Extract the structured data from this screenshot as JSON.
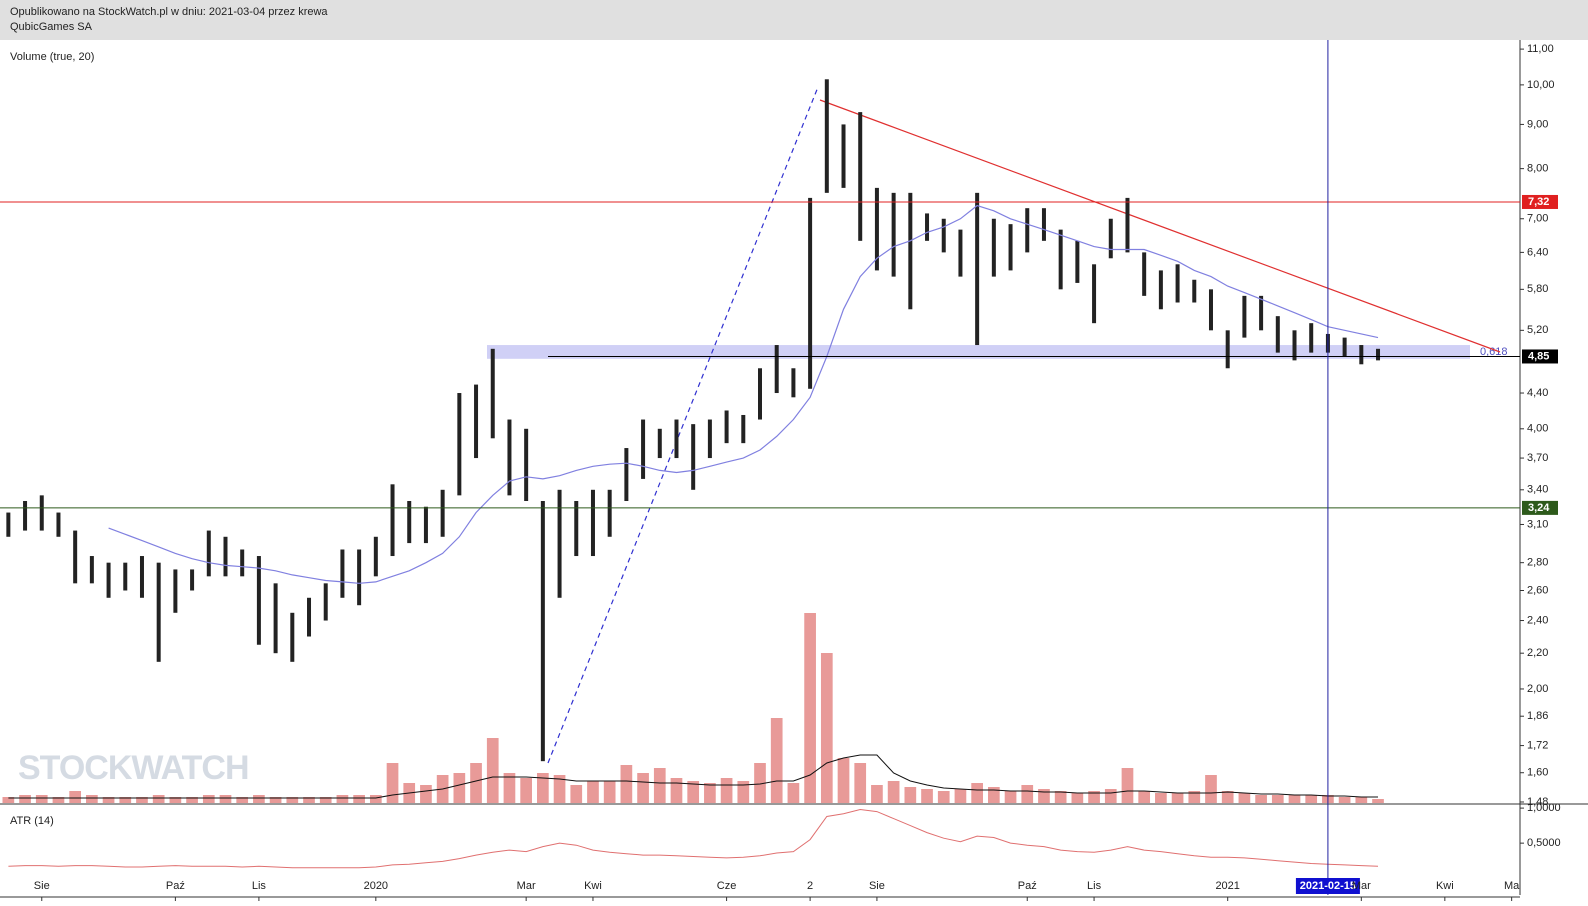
{
  "chart_data": {
    "type": "stock",
    "header": "Opublikowano na StockWatch.pl w dniu: 2021-03-04 przez krewa",
    "title": "QubicGames SA",
    "volume_label": "Volume (true, 20)",
    "atr_label": "ATR (14)",
    "watermark": "STOCKWATCH",
    "log_scale": true,
    "ylim": [
      1.476,
      11.27
    ],
    "yticks": [
      {
        "value": 11,
        "label": "11,00"
      },
      {
        "value": 10,
        "label": "10,00"
      },
      {
        "value": 9,
        "label": "9,00"
      },
      {
        "value": 8,
        "label": "8,00"
      },
      {
        "value": 7,
        "label": "7,00"
      },
      {
        "value": 6.4,
        "label": "6,40"
      },
      {
        "value": 5.8,
        "label": "5,80"
      },
      {
        "value": 5.2,
        "label": "5,20"
      },
      {
        "value": 4.4,
        "label": "4,40"
      },
      {
        "value": 4,
        "label": "4,00"
      },
      {
        "value": 3.7,
        "label": "3,70"
      },
      {
        "value": 3.4,
        "label": "3,40"
      },
      {
        "value": 3.1,
        "label": "3,10"
      },
      {
        "value": 2.8,
        "label": "2,80"
      },
      {
        "value": 2.6,
        "label": "2,60"
      },
      {
        "value": 2.4,
        "label": "2,40"
      },
      {
        "value": 2.2,
        "label": "2,20"
      },
      {
        "value": 2,
        "label": "2,00"
      },
      {
        "value": 1.86,
        "label": "1,86"
      },
      {
        "value": 1.72,
        "label": "1,72"
      },
      {
        "value": 1.6,
        "label": "1,60"
      },
      {
        "value": 1.48,
        "label": "1,48"
      }
    ],
    "categories": [
      null,
      null,
      "Sie",
      null,
      null,
      null,
      null,
      null,
      null,
      null,
      "Paź",
      null,
      null,
      null,
      null,
      "Lis",
      null,
      null,
      null,
      null,
      null,
      null,
      "2020",
      null,
      null,
      null,
      null,
      null,
      null,
      null,
      null,
      "Mar",
      null,
      null,
      null,
      "Kwi",
      null,
      null,
      null,
      null,
      null,
      null,
      null,
      "Cze",
      null,
      null,
      null,
      null,
      "2",
      null,
      null,
      null,
      "Sie",
      null,
      null,
      null,
      null,
      null,
      null,
      null,
      null,
      "Paź",
      null,
      null,
      null,
      "Lis",
      null,
      null,
      null,
      null,
      null,
      null,
      null,
      "2021",
      null,
      null,
      null,
      null,
      null,
      "2021-02-15",
      null,
      "Mar",
      null,
      null,
      null,
      null,
      "Kwi",
      null,
      null,
      null,
      "Ma"
    ],
    "low": [
      3.0,
      3.05,
      3.05,
      3.0,
      2.65,
      2.65,
      2.55,
      2.6,
      2.55,
      2.15,
      2.45,
      2.6,
      2.7,
      2.7,
      2.7,
      2.25,
      2.2,
      2.15,
      2.3,
      2.4,
      2.55,
      2.5,
      2.7,
      2.85,
      2.95,
      2.95,
      3.0,
      3.35,
      3.7,
      3.9,
      3.35,
      3.3,
      1.65,
      2.55,
      2.85,
      2.85,
      3.0,
      3.3,
      3.5,
      3.7,
      3.7,
      3.4,
      3.7,
      3.85,
      3.85,
      4.1,
      4.4,
      4.35,
      4.45,
      7.5,
      7.6,
      6.6,
      6.1,
      6.0,
      5.5,
      6.6,
      6.4,
      6.0,
      5.0,
      6.0,
      6.1,
      6.4,
      6.6,
      5.8,
      5.9,
      5.3,
      6.3,
      6.4,
      5.7,
      5.5,
      5.6,
      5.6,
      5.2,
      4.7,
      5.1,
      5.2,
      4.9,
      4.8,
      4.9,
      4.9,
      4.85,
      4.75,
      4.8,
      null,
      null,
      null,
      null,
      null,
      null,
      null,
      null
    ],
    "high": [
      3.2,
      3.3,
      3.35,
      3.2,
      3.05,
      2.85,
      2.8,
      2.8,
      2.85,
      2.8,
      2.75,
      2.75,
      3.05,
      3.0,
      2.9,
      2.85,
      2.65,
      2.45,
      2.55,
      2.65,
      2.9,
      2.9,
      3.0,
      3.45,
      3.3,
      3.25,
      3.4,
      4.4,
      4.5,
      4.95,
      4.1,
      4.0,
      3.3,
      3.4,
      3.3,
      3.4,
      3.4,
      3.8,
      4.1,
      4.0,
      4.1,
      4.05,
      4.1,
      4.2,
      4.15,
      4.7,
      5.0,
      4.7,
      7.4,
      10.15,
      9.0,
      9.3,
      7.6,
      7.5,
      7.5,
      7.1,
      7.0,
      6.8,
      7.5,
      7.0,
      6.9,
      7.2,
      7.2,
      6.8,
      6.6,
      6.2,
      7.0,
      7.4,
      6.4,
      6.1,
      6.2,
      5.95,
      5.8,
      5.2,
      5.7,
      5.7,
      5.4,
      5.2,
      5.3,
      5.15,
      5.1,
      5.0,
      4.95,
      null,
      null,
      null,
      null,
      null,
      null,
      null,
      null
    ],
    "ma": {
      "color": "#8080e0",
      "values": [
        null,
        null,
        null,
        null,
        null,
        null,
        3.07,
        3.02,
        2.97,
        2.92,
        2.87,
        2.83,
        2.8,
        2.78,
        2.77,
        2.76,
        2.74,
        2.71,
        2.69,
        2.67,
        2.66,
        2.65,
        2.66,
        2.7,
        2.74,
        2.8,
        2.87,
        3.0,
        3.2,
        3.35,
        3.48,
        3.52,
        3.5,
        3.53,
        3.58,
        3.62,
        3.64,
        3.65,
        3.62,
        3.58,
        3.56,
        3.58,
        3.62,
        3.66,
        3.7,
        3.78,
        3.92,
        4.1,
        4.35,
        4.85,
        5.5,
        6.0,
        6.3,
        6.5,
        6.6,
        6.75,
        6.85,
        7.0,
        7.25,
        7.15,
        7.0,
        6.9,
        6.8,
        6.7,
        6.6,
        6.5,
        6.45,
        6.45,
        6.45,
        6.35,
        6.25,
        6.1,
        6.0,
        5.85,
        5.75,
        5.65,
        5.55,
        5.45,
        5.35,
        5.25,
        5.2,
        5.15,
        5.1,
        null,
        null,
        null,
        null,
        null,
        null,
        null,
        null
      ]
    },
    "volume": {
      "color": "#e89a98",
      "values": [
        6,
        8,
        8,
        6,
        12,
        8,
        6,
        6,
        6,
        8,
        6,
        6,
        8,
        8,
        6,
        8,
        6,
        6,
        6,
        6,
        8,
        8,
        8,
        40,
        20,
        18,
        28,
        30,
        40,
        65,
        30,
        25,
        30,
        28,
        18,
        22,
        22,
        38,
        30,
        35,
        25,
        22,
        20,
        25,
        22,
        40,
        85,
        20,
        190,
        150,
        45,
        40,
        18,
        22,
        16,
        14,
        12,
        14,
        20,
        16,
        12,
        18,
        14,
        12,
        10,
        12,
        14,
        35,
        12,
        10,
        10,
        12,
        28,
        12,
        10,
        8,
        8,
        8,
        8,
        8,
        6,
        6,
        4,
        null,
        null,
        null,
        null,
        null,
        null,
        null,
        null
      ]
    },
    "volume_ma": {
      "color": "#111111",
      "values": [
        5,
        5,
        5,
        5,
        5,
        5,
        5,
        5,
        5,
        5,
        5,
        5,
        5,
        5,
        5,
        5,
        5,
        5,
        5,
        5,
        5,
        5,
        5,
        8,
        10,
        12,
        14,
        18,
        22,
        26,
        26,
        26,
        25,
        24,
        22,
        22,
        22,
        22,
        21,
        20,
        20,
        19,
        18,
        18,
        18,
        19,
        22,
        22,
        28,
        40,
        45,
        48,
        48,
        30,
        22,
        18,
        15,
        14,
        13,
        13,
        12,
        12,
        11,
        11,
        10,
        10,
        10,
        12,
        12,
        11,
        10,
        10,
        10,
        11,
        10,
        9,
        9,
        8,
        8,
        7,
        7,
        6,
        6,
        null,
        null,
        null,
        null,
        null,
        null,
        null,
        null
      ]
    },
    "atr": {
      "color": "#e07070",
      "ylim": [
        -0.24,
        1.03
      ],
      "yticks": [
        {
          "value": 1,
          "label": "1,0000"
        },
        {
          "value": 0.5,
          "label": "0,5000"
        }
      ],
      "values": [
        0.17,
        0.18,
        0.18,
        0.17,
        0.18,
        0.18,
        0.17,
        0.16,
        0.16,
        0.17,
        0.18,
        0.17,
        0.17,
        0.17,
        0.16,
        0.17,
        0.16,
        0.15,
        0.15,
        0.15,
        0.15,
        0.15,
        0.16,
        0.19,
        0.2,
        0.22,
        0.24,
        0.28,
        0.33,
        0.37,
        0.4,
        0.38,
        0.45,
        0.5,
        0.47,
        0.4,
        0.37,
        0.35,
        0.33,
        0.33,
        0.32,
        0.31,
        0.3,
        0.29,
        0.3,
        0.32,
        0.36,
        0.38,
        0.55,
        0.88,
        0.92,
        0.98,
        0.95,
        0.85,
        0.75,
        0.65,
        0.57,
        0.52,
        0.6,
        0.58,
        0.5,
        0.47,
        0.45,
        0.4,
        0.38,
        0.37,
        0.4,
        0.45,
        0.4,
        0.38,
        0.35,
        0.32,
        0.3,
        0.3,
        0.29,
        0.27,
        0.25,
        0.23,
        0.21,
        0.2,
        0.19,
        0.18,
        0.17,
        null,
        null,
        null,
        null,
        null,
        null,
        null,
        null
      ]
    },
    "levels": [
      {
        "value": 7.32,
        "label": "7,32",
        "color": "#e02020"
      },
      {
        "value": 3.24,
        "label": "3,24",
        "color": "#2d5a1b"
      },
      {
        "value": 4.85,
        "label": "4,85",
        "color": "#000000"
      }
    ],
    "fib": {
      "label": "0,618",
      "low": 4.82,
      "high": 5.0,
      "color": "#c8c8f4"
    }
  }
}
